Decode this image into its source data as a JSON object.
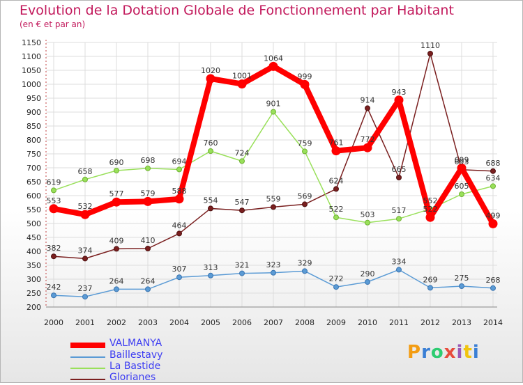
{
  "title": "Evolution de la Dotation Globale de Fonctionnement par Habitant",
  "subtitle": "(en € et par an)",
  "logo": "Proxiti",
  "colors": {
    "VALMANYA": "#ff0000",
    "Baillestavy": "#5b9bd5",
    "La Bastide": "#99e05a",
    "Glorianes": "#7a1f1f",
    "title": "#c2185b",
    "legend_text": "#3d3df2",
    "grid": "#dcdcdc",
    "axis_text": "#222222",
    "label_text": "#333333"
  },
  "chart_data": {
    "type": "line",
    "title": "Evolution de la Dotation Globale de Fonctionnement par Habitant",
    "ylabel": "(en € et par an)",
    "xlabel": "",
    "categories": [
      "2000",
      "2001",
      "2002",
      "2003",
      "2004",
      "2005",
      "2006",
      "2007",
      "2008",
      "2009",
      "2010",
      "2011",
      "2012",
      "2013",
      "2014"
    ],
    "ylim": [
      200,
      1150
    ],
    "yticks": [
      200,
      250,
      300,
      350,
      400,
      450,
      500,
      550,
      600,
      650,
      700,
      750,
      800,
      850,
      900,
      950,
      1000,
      1050,
      1100,
      1150
    ],
    "legend_position": "bottom-left",
    "series": [
      {
        "name": "VALMANYA",
        "values": [
          553,
          532,
          577,
          579,
          588,
          1020,
          1001,
          1064,
          999,
          761,
          772,
          943,
          522,
          699,
          499
        ]
      },
      {
        "name": "Baillestavy",
        "values": [
          242,
          237,
          264,
          264,
          307,
          313,
          321,
          323,
          329,
          272,
          290,
          334,
          269,
          275,
          268
        ]
      },
      {
        "name": "La Bastide",
        "values": [
          619,
          658,
          690,
          698,
          694,
          760,
          724,
          901,
          759,
          522,
          503,
          517,
          552,
          605,
          634
        ]
      },
      {
        "name": "Glorianes",
        "values": [
          382,
          374,
          409,
          410,
          464,
          554,
          547,
          559,
          569,
          624,
          914,
          665,
          1110,
          693,
          688
        ]
      }
    ]
  }
}
